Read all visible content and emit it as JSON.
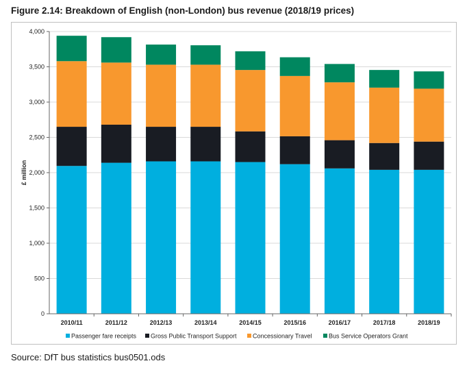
{
  "title": "Figure 2.14: Breakdown of English (non-London) bus revenue (2018/19 prices)",
  "source": "Source: DfT bus statistics bus0501.ods",
  "chart_data": {
    "type": "bar",
    "stacked": true,
    "title": "",
    "xlabel": "",
    "ylabel": "£ million",
    "ylim": [
      0,
      4000
    ],
    "yticks": [
      0,
      500,
      1000,
      1500,
      2000,
      2500,
      3000,
      3500,
      4000
    ],
    "ytick_labels": [
      "0",
      "500",
      "1,000",
      "1,500",
      "2,000",
      "2,500",
      "3,000",
      "3,500",
      "4,000"
    ],
    "grid": true,
    "legend_position": "bottom",
    "categories": [
      "2010/11",
      "2011/12",
      "2012/13",
      "2013/14",
      "2014/15",
      "2015/16",
      "2016/17",
      "2017/18",
      "2018/19"
    ],
    "series": [
      {
        "name": "Passenger fare receipts",
        "color": "#00afdf",
        "values": [
          2095,
          2140,
          2160,
          2160,
          2150,
          2120,
          2060,
          2040,
          2040
        ]
      },
      {
        "name": "Gross Public Transport Support",
        "color": "#191c23",
        "values": [
          555,
          540,
          490,
          490,
          435,
          395,
          400,
          380,
          400
        ]
      },
      {
        "name": "Concessionary Travel",
        "color": "#f8982e",
        "values": [
          930,
          880,
          880,
          880,
          870,
          855,
          820,
          785,
          750
        ]
      },
      {
        "name": "Bus Service Operators Grant",
        "color": "#00875f",
        "values": [
          360,
          360,
          285,
          275,
          265,
          265,
          260,
          250,
          245
        ]
      }
    ]
  }
}
